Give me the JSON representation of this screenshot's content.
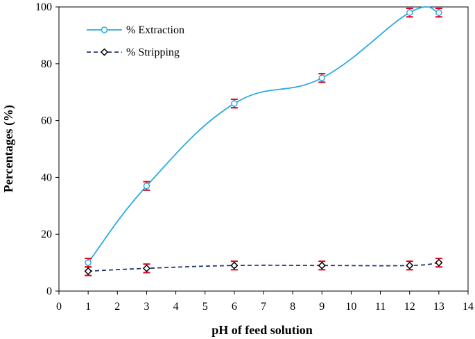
{
  "chart_data": {
    "type": "line",
    "title": "",
    "xlabel": "pH of feed solution",
    "ylabel": "Percentages (%)",
    "xlim": [
      0,
      14
    ],
    "ylim": [
      0,
      100
    ],
    "x_ticks": [
      0,
      1,
      2,
      3,
      4,
      5,
      6,
      7,
      8,
      9,
      10,
      11,
      12,
      13,
      14
    ],
    "y_ticks": [
      0,
      20,
      40,
      60,
      80,
      100
    ],
    "grid": false,
    "legend_position": "top-left",
    "error_bar_color": "#e0001b",
    "series": [
      {
        "name": "% Extraction",
        "marker": "circle",
        "line_style": "solid",
        "color": "#29abe2",
        "x": [
          1,
          3,
          6,
          9,
          12,
          13
        ],
        "y": [
          10,
          37,
          66,
          75,
          98,
          98
        ],
        "error": [
          1.5,
          1.5,
          1.5,
          1.5,
          1.5,
          1.5
        ]
      },
      {
        "name": "% Stripping",
        "marker": "diamond",
        "line_style": "dashed",
        "color": "#1f3a6e",
        "x": [
          1,
          3,
          6,
          9,
          12,
          13
        ],
        "y": [
          7,
          8,
          9,
          9,
          9,
          10
        ],
        "error": [
          1.5,
          1.5,
          1.5,
          1.5,
          1.5,
          1.5
        ]
      }
    ]
  }
}
